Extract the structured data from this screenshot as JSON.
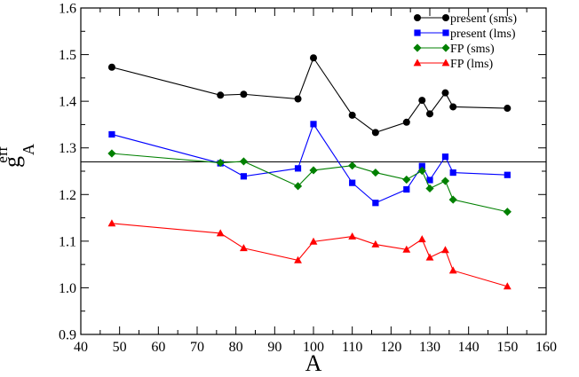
{
  "chart_data": {
    "type": "line",
    "xlabel": "A",
    "ylabel": {
      "main": "g",
      "sup": "eff",
      "sub": "A"
    },
    "xlim": [
      40,
      160
    ],
    "ylim": [
      0.9,
      1.6
    ],
    "xticks": [
      40,
      50,
      60,
      70,
      80,
      90,
      100,
      110,
      120,
      130,
      140,
      150,
      160
    ],
    "yticks": [
      0.9,
      1.0,
      1.1,
      1.2,
      1.3,
      1.4,
      1.5,
      1.6
    ],
    "x_minor_step": 5,
    "y_minor_step": 0.05,
    "reference_line_y": 1.27,
    "grid": false,
    "legend_position": "top-right",
    "x": [
      48,
      76,
      82,
      96,
      100,
      110,
      116,
      124,
      128,
      130,
      134,
      136,
      150
    ],
    "series": [
      {
        "name": "present (sms)",
        "color": "#000000",
        "marker": "circle",
        "values": [
          1.473,
          1.413,
          1.415,
          1.405,
          1.493,
          1.37,
          1.333,
          1.355,
          1.402,
          1.373,
          1.418,
          1.388,
          1.385
        ]
      },
      {
        "name": "present (lms)",
        "color": "#0000ff",
        "marker": "square",
        "values": [
          1.329,
          1.267,
          1.239,
          1.256,
          1.351,
          1.225,
          1.182,
          1.211,
          1.261,
          1.231,
          1.281,
          1.247,
          1.242
        ]
      },
      {
        "name": "FP (sms)",
        "color": "#008000",
        "marker": "diamond",
        "values": [
          1.288,
          1.268,
          1.271,
          1.218,
          1.252,
          1.262,
          1.247,
          1.232,
          1.251,
          1.213,
          1.229,
          1.189,
          1.163
        ]
      },
      {
        "name": "FP (lms)",
        "color": "#ff0000",
        "marker": "triangle",
        "values": [
          1.138,
          1.117,
          1.085,
          1.059,
          1.099,
          1.11,
          1.093,
          1.082,
          1.104,
          1.065,
          1.081,
          1.037,
          1.003
        ]
      }
    ]
  }
}
